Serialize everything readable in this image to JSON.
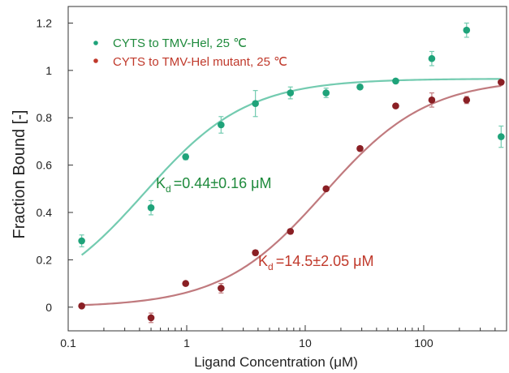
{
  "chart_data": {
    "type": "scatter",
    "xlabel": "Ligand Concentration (μM)",
    "ylabel": "Fraction Bound [-]",
    "xscale": "log",
    "xlim": [
      0.1,
      500
    ],
    "ylim": [
      -0.1,
      1.27
    ],
    "x_ticks": [
      0.1,
      1,
      10,
      100
    ],
    "x_tick_labels": [
      "0.1",
      "1",
      "10",
      "100"
    ],
    "y_ticks": [
      0,
      0.2,
      0.4,
      0.6,
      0.8,
      1.0,
      1.2
    ],
    "y_tick_labels": [
      "0",
      "0.2",
      "0.4",
      "0.6",
      "0.8",
      "1",
      "1.2"
    ],
    "grid": false,
    "legend_position": "top-left",
    "series": [
      {
        "name": "CYTS to TMV-Hel, 25 ℃",
        "color": "#1fa37a",
        "fit_color": "#73cbb0",
        "x": [
          0.13,
          0.5,
          0.98,
          1.95,
          3.8,
          7.5,
          15,
          29,
          58,
          117,
          230,
          450
        ],
        "y": [
          0.28,
          0.42,
          0.635,
          0.77,
          0.86,
          0.905,
          0.905,
          0.93,
          0.955,
          1.05,
          1.17,
          0.72
        ],
        "err": [
          0.025,
          0.03,
          0.012,
          0.035,
          0.055,
          0.025,
          0.02,
          0.01,
          0.008,
          0.03,
          0.03,
          0.045
        ],
        "kd_label": "=0.44±0.16 μM"
      },
      {
        "name": "CYTS to TMV-Hel mutant, 25 ℃",
        "color": "#8a1f24",
        "fit_color": "#c07a7e",
        "x": [
          0.13,
          0.5,
          0.98,
          1.95,
          3.8,
          7.5,
          15,
          29,
          58,
          117,
          230,
          450
        ],
        "y": [
          0.005,
          -0.045,
          0.1,
          0.08,
          0.23,
          0.32,
          0.5,
          0.67,
          0.85,
          0.875,
          0.875,
          0.95
        ],
        "err": [
          0.008,
          0.02,
          0.008,
          0.02,
          0.01,
          0.01,
          0.005,
          0.005,
          0.005,
          0.03,
          0.015,
          0.005
        ],
        "kd_label": "=14.5±2.05 μM"
      }
    ],
    "fits": [
      {
        "kd": 0.44,
        "max": 0.965,
        "color": "#73cbb0"
      },
      {
        "kd": 14.5,
        "max": 0.965,
        "color": "#c07a7e"
      }
    ],
    "annotations": {
      "kd_symbol": "K",
      "kd_subscript": "d"
    }
  }
}
